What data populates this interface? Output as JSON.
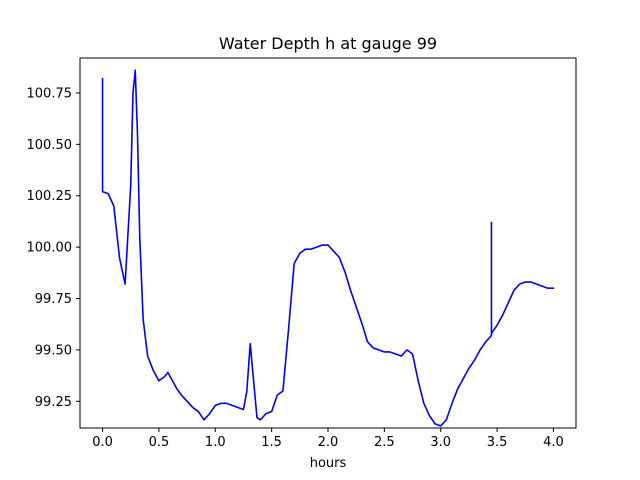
{
  "chart_data": {
    "type": "line",
    "title": "Water Depth h at gauge 99",
    "xlabel": "hours",
    "ylabel": "",
    "xlim": [
      -0.2,
      4.2
    ],
    "ylim": [
      99.12,
      100.92
    ],
    "x_ticks": [
      0.0,
      0.5,
      1.0,
      1.5,
      2.0,
      2.5,
      3.0,
      3.5,
      4.0
    ],
    "x_tick_labels": [
      "0.0",
      "0.5",
      "1.0",
      "1.5",
      "2.0",
      "2.5",
      "3.0",
      "3.5",
      "4.0"
    ],
    "y_ticks": [
      99.25,
      99.5,
      99.75,
      100.0,
      100.25,
      100.5,
      100.75
    ],
    "y_tick_labels": [
      "99.25",
      "99.50",
      "99.75",
      "100.00",
      "100.25",
      "100.50",
      "100.75"
    ],
    "grid": false,
    "series": [
      {
        "name": "h",
        "color": "#0000ff",
        "x": [
          0.0,
          0.0,
          0.0,
          0.05,
          0.1,
          0.15,
          0.2,
          0.25,
          0.27,
          0.29,
          0.31,
          0.33,
          0.36,
          0.4,
          0.45,
          0.5,
          0.55,
          0.58,
          0.62,
          0.66,
          0.7,
          0.75,
          0.8,
          0.85,
          0.9,
          0.95,
          1.0,
          1.05,
          1.1,
          1.15,
          1.2,
          1.25,
          1.28,
          1.31,
          1.34,
          1.37,
          1.4,
          1.45,
          1.5,
          1.55,
          1.6,
          1.65,
          1.7,
          1.75,
          1.8,
          1.85,
          1.9,
          1.95,
          2.0,
          2.05,
          2.1,
          2.15,
          2.2,
          2.25,
          2.3,
          2.35,
          2.4,
          2.45,
          2.5,
          2.55,
          2.6,
          2.65,
          2.7,
          2.75,
          2.8,
          2.85,
          2.9,
          2.95,
          3.0,
          3.05,
          3.1,
          3.15,
          3.2,
          3.25,
          3.3,
          3.35,
          3.4,
          3.45,
          3.45,
          3.45,
          3.5,
          3.55,
          3.6,
          3.65,
          3.7,
          3.75,
          3.8,
          3.85,
          3.9,
          3.95,
          4.0
        ],
        "y": [
          100.27,
          100.82,
          100.27,
          100.26,
          100.2,
          99.95,
          99.82,
          100.3,
          100.75,
          100.86,
          100.55,
          100.05,
          99.65,
          99.47,
          99.4,
          99.35,
          99.37,
          99.39,
          99.35,
          99.31,
          99.28,
          99.25,
          99.22,
          99.2,
          99.16,
          99.19,
          99.23,
          99.24,
          99.24,
          99.23,
          99.22,
          99.21,
          99.3,
          99.53,
          99.35,
          99.17,
          99.16,
          99.19,
          99.2,
          99.28,
          99.3,
          99.6,
          99.92,
          99.97,
          99.99,
          99.99,
          100.0,
          100.01,
          100.01,
          99.98,
          99.95,
          99.88,
          99.79,
          99.71,
          99.63,
          99.54,
          99.51,
          99.5,
          99.49,
          99.49,
          99.48,
          99.47,
          99.5,
          99.48,
          99.35,
          99.24,
          99.18,
          99.14,
          99.13,
          99.16,
          99.24,
          99.31,
          99.36,
          99.41,
          99.45,
          99.5,
          99.54,
          99.57,
          100.12,
          99.58,
          99.62,
          99.67,
          99.73,
          99.79,
          99.82,
          99.83,
          99.83,
          99.82,
          99.81,
          99.8,
          99.8
        ]
      }
    ]
  }
}
